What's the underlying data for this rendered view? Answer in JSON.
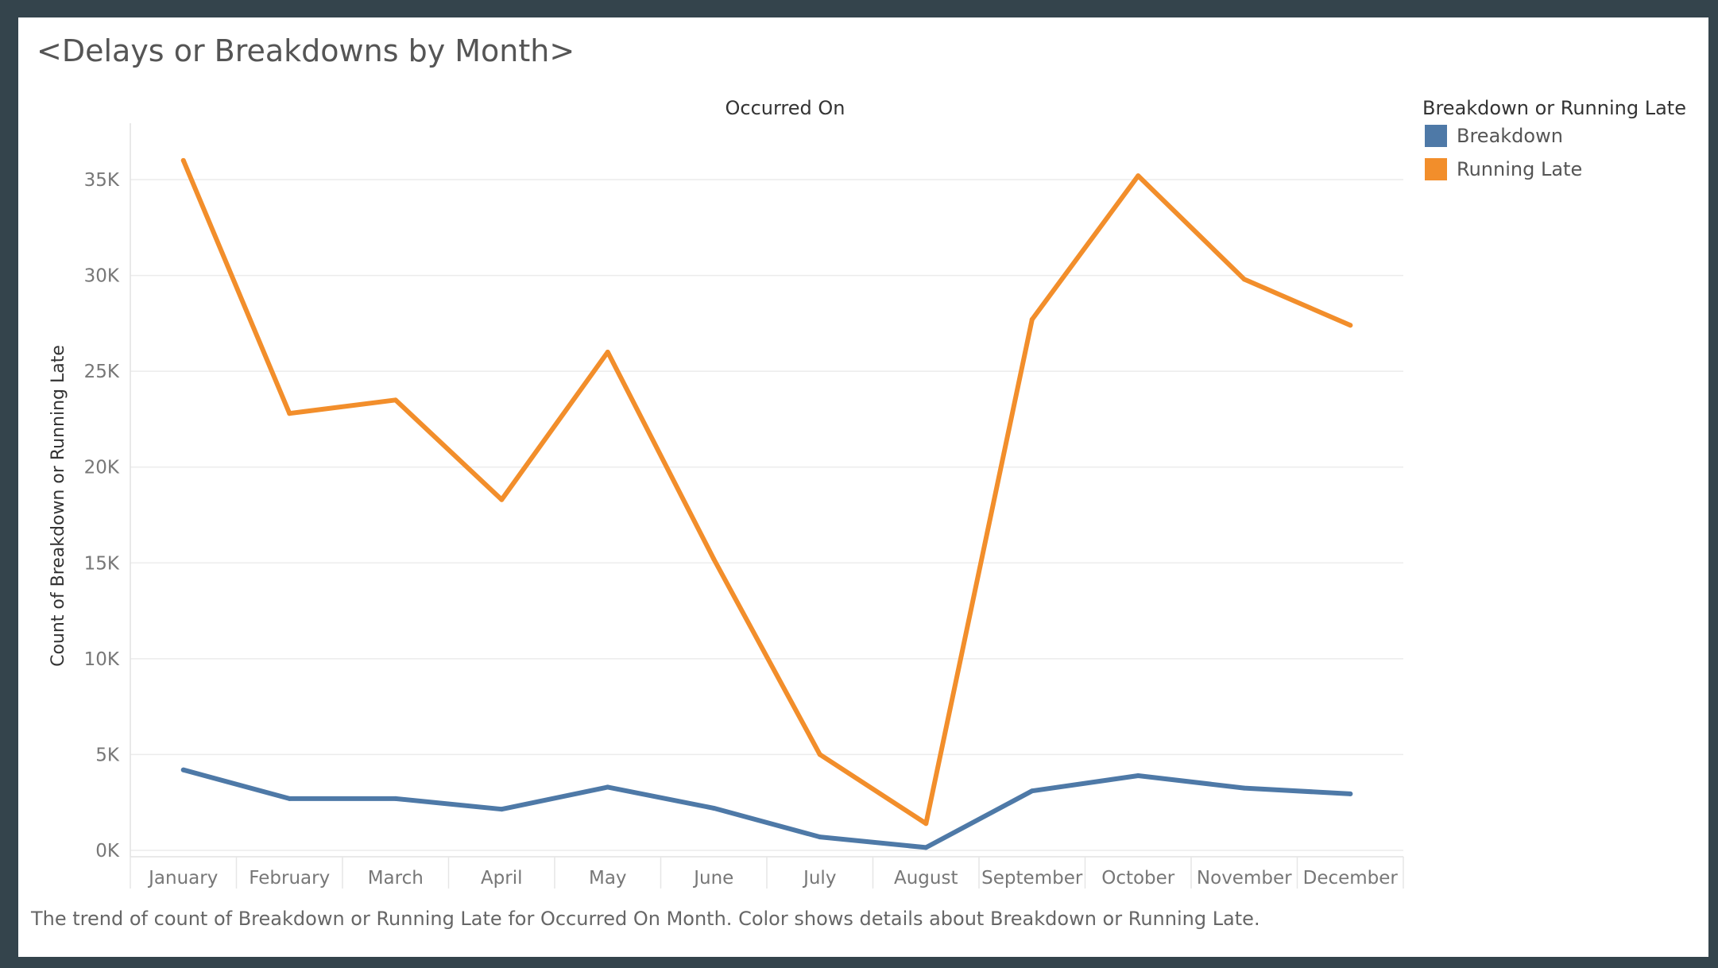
{
  "chart_data": {
    "type": "line",
    "title": "<Delays or Breakdowns by Month>",
    "column_header": "Occurred On",
    "ylabel": "Count of Breakdown or Running Late",
    "xlabel": "",
    "categories": [
      "January",
      "February",
      "March",
      "April",
      "May",
      "June",
      "July",
      "August",
      "September",
      "October",
      "November",
      "December"
    ],
    "series": [
      {
        "name": "Breakdown",
        "color": "#4e79a7",
        "values": [
          4200,
          2700,
          2700,
          2150,
          3300,
          2200,
          700,
          150,
          3100,
          3900,
          3250,
          2950
        ]
      },
      {
        "name": "Running Late",
        "color": "#f28e2b",
        "values": [
          36000,
          22800,
          23500,
          18300,
          26000,
          15200,
          5000,
          1400,
          27700,
          35200,
          29800,
          27400
        ]
      }
    ],
    "ylim": [
      0,
      38000
    ],
    "yticks": [
      0,
      5000,
      10000,
      15000,
      20000,
      25000,
      30000,
      35000
    ],
    "ytick_labels": [
      "0K",
      "5K",
      "10K",
      "15K",
      "20K",
      "25K",
      "30K",
      "35K"
    ],
    "grid": true,
    "legend": {
      "title": "Breakdown or Running Late",
      "placement": "right"
    },
    "caption": "The trend of count of Breakdown or Running Late for Occurred On Month.  Color shows details about Breakdown or Running Late."
  }
}
